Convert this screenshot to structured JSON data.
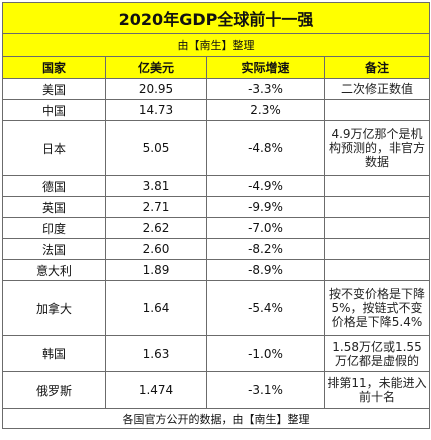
{
  "title": "2020年GDP全球前十一强",
  "subtitle": "由【南生】整理",
  "headers": [
    "国家",
    "亿美元",
    "实际增速",
    "备注"
  ],
  "rows": [
    {
      "country": "美国",
      "gdp": "20.95",
      "growth": "-3.3%",
      "note": "二次修正数值"
    },
    {
      "country": "中国",
      "gdp": "14.73",
      "growth": "2.3%",
      "note": ""
    },
    {
      "country": "日本",
      "gdp": "5.05",
      "growth": "-4.8%",
      "note": "4.9万亿那个是机构预测的，非官方数据"
    },
    {
      "country": "德国",
      "gdp": "3.81",
      "growth": "-4.9%",
      "note": ""
    },
    {
      "country": "英国",
      "gdp": "2.71",
      "growth": "-9.9%",
      "note": ""
    },
    {
      "country": "印度",
      "gdp": "2.62",
      "growth": "-7.0%",
      "note": ""
    },
    {
      "country": "法国",
      "gdp": "2.60",
      "growth": "-8.2%",
      "note": ""
    },
    {
      "country": "意大利",
      "gdp": "1.89",
      "growth": "-8.9%",
      "note": ""
    },
    {
      "country": "加拿大",
      "gdp": "1.64",
      "growth": "-5.4%",
      "note": "按不变价格是下降5%，按链式不变价格是下降5.4%"
    },
    {
      "country": "韩国",
      "gdp": "1.63",
      "growth": "-1.0%",
      "note": "1.58万亿或1.55万亿都是虚假的"
    },
    {
      "country": "俄罗斯",
      "gdp": "1.474",
      "growth": "-3.1%",
      "note": "排第11，未能进入前十名"
    }
  ],
  "footer": "各国官方公开的数据，由【南生】整理"
}
